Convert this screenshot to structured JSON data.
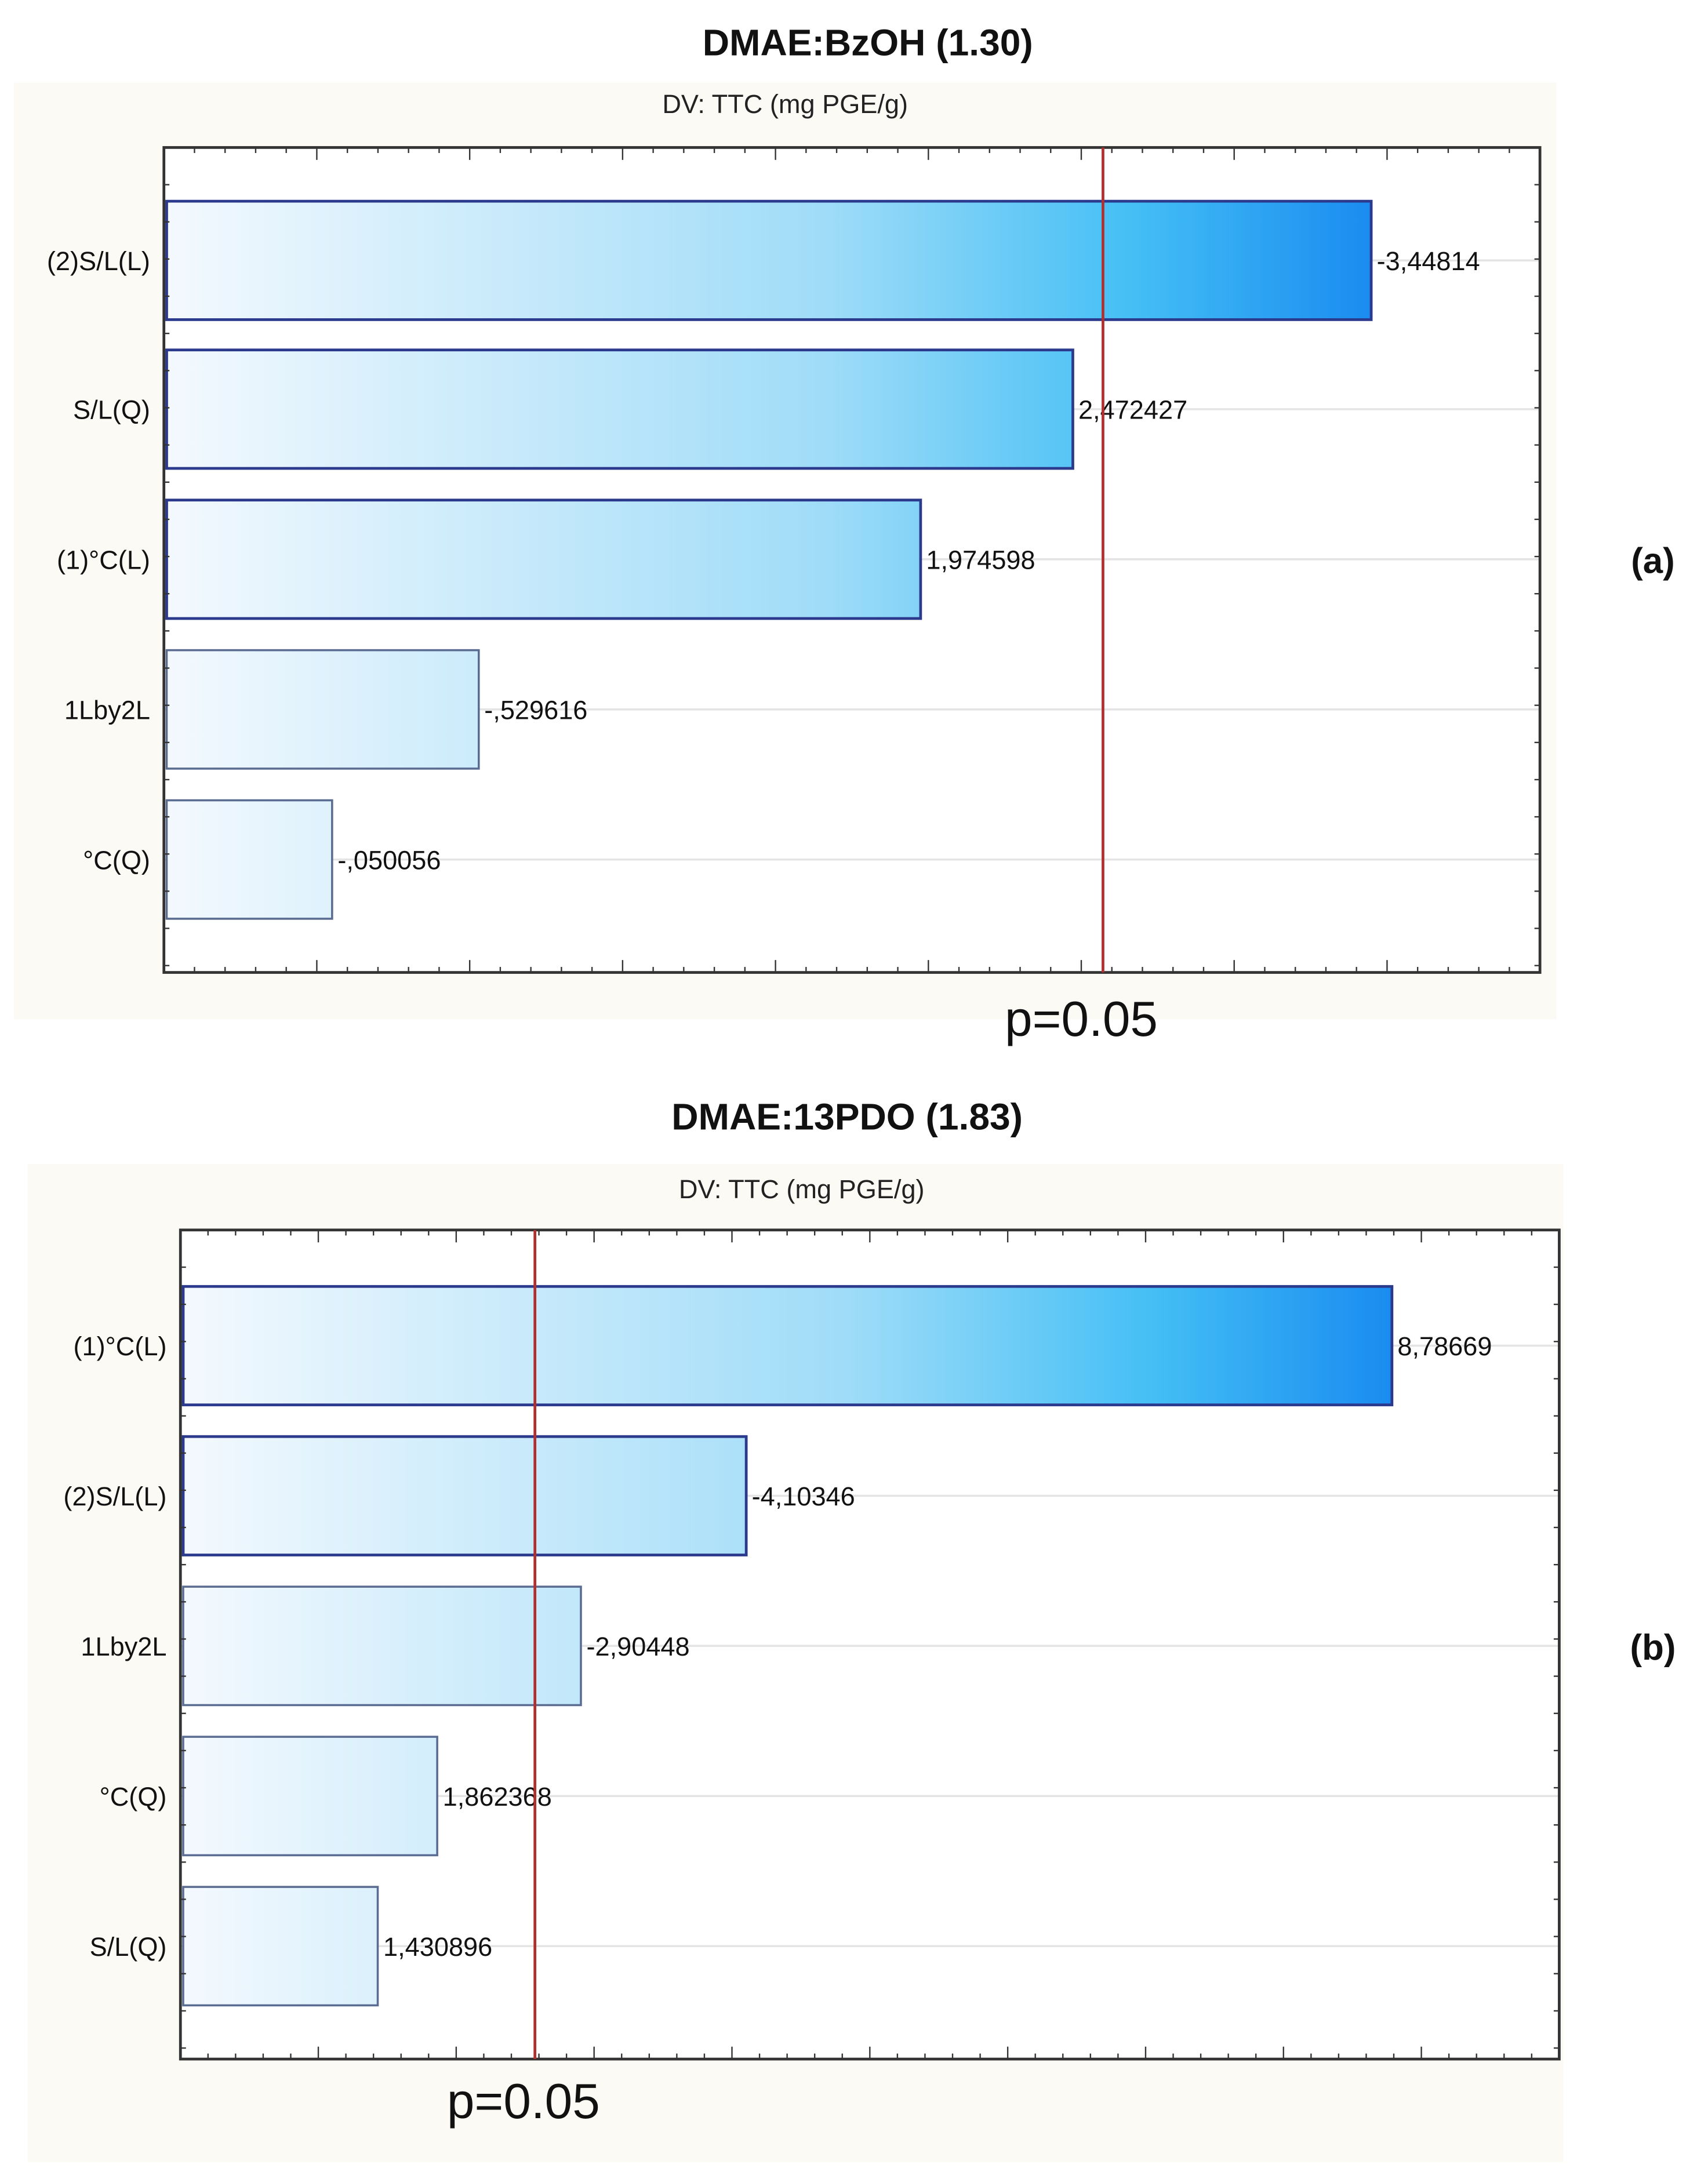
{
  "chart_data": [
    {
      "type": "bar",
      "orientation": "horizontal",
      "title": "DMAE:BzOH (1.30)",
      "subtitle": "DV: TTC (mg PGE/g)",
      "panel_label": "(a)",
      "categories": [
        "(2)S/L(L)",
        "S/L(Q)",
        "(1)°C(L)",
        "1Lby2L",
        "°C(Q)"
      ],
      "values": [
        3.44814,
        2.472427,
        1.974598,
        0.529616,
        0.050056
      ],
      "value_labels": [
        "-3,44814",
        "2,472427",
        "1,974598",
        "-,529616",
        "-,050056"
      ],
      "reference_line": {
        "value": 2.571,
        "label": "p=0.05",
        "color": "#b03030"
      },
      "xlim": [
        -0.5,
        4.0
      ],
      "major_tick_step": 0.5,
      "grid": true,
      "bar_gradient": [
        "#f4f9fe",
        "#1a8cf0"
      ]
    },
    {
      "type": "bar",
      "orientation": "horizontal",
      "title": "DMAE:13PDO (1.83)",
      "subtitle": "DV: TTC (mg PGE/g)",
      "panel_label": "(b)",
      "categories": [
        "(1)°C(L)",
        "(2)S/L(L)",
        "1Lby2L",
        "°C(Q)",
        "S/L(Q)"
      ],
      "values": [
        8.78669,
        4.10346,
        2.90448,
        1.862368,
        1.430896
      ],
      "value_labels": [
        "8,78669",
        "-4,10346",
        "-2,90448",
        "1,862368",
        "1,430896"
      ],
      "reference_line": {
        "value": 2.571,
        "label": "p=0.05",
        "color": "#b03030"
      },
      "xlim": [
        0,
        10
      ],
      "major_tick_step": 1,
      "grid": true,
      "bar_gradient": [
        "#f4f9fe",
        "#1a8cf0"
      ]
    }
  ]
}
